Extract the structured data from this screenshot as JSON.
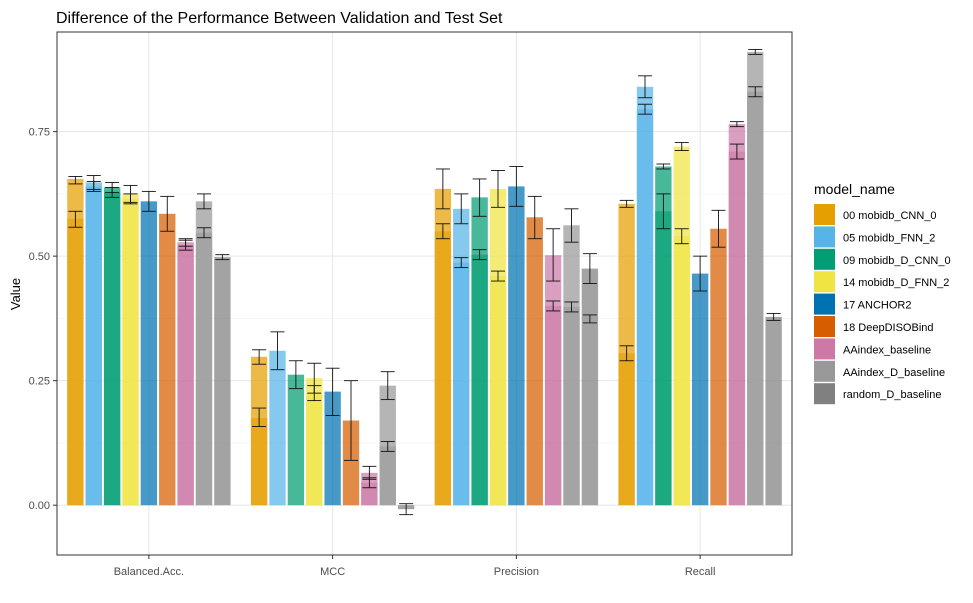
{
  "chart_data": {
    "type": "bar",
    "title": "Difference of the Performance Between Validation and Test Set",
    "xlabel": "",
    "ylabel": "Value",
    "ylim": [
      -0.1,
      0.95
    ],
    "yticks": [
      0.0,
      0.25,
      0.5,
      0.75
    ],
    "ytick_labels": [
      "0.00",
      "0.25",
      "0.50",
      "0.75"
    ],
    "grid": true,
    "legend_title": "model_name",
    "legend_position": "right",
    "categories": [
      "Balanced.Acc.",
      "MCC",
      "Precision",
      "Recall"
    ],
    "series": [
      {
        "name": "00 mobidb_CNN_0",
        "color": "#E69F00",
        "values": [
          0.655,
          0.298,
          0.635,
          0.605
        ],
        "inner": [
          0.575,
          0.175,
          0.55,
          0.305
        ],
        "err_hi": [
          0.66,
          0.312,
          0.675,
          0.612
        ],
        "err_lo": [
          0.645,
          0.283,
          0.595,
          0.598
        ],
        "ierr_hi": [
          0.59,
          0.195,
          0.565,
          0.32
        ],
        "ierr_lo": [
          0.558,
          0.158,
          0.535,
          0.29
        ]
      },
      {
        "name": "05 mobidb_FNN_2",
        "color": "#56B4E9",
        "values": [
          0.648,
          0.31,
          0.595,
          0.84
        ],
        "inner": [
          0.64,
          0.0,
          0.487,
          0.795
        ],
        "err_hi": [
          0.662,
          0.348,
          0.625,
          0.862
        ],
        "err_lo": [
          0.634,
          0.272,
          0.565,
          0.818
        ],
        "ierr_hi": [
          0.65,
          null,
          0.497,
          0.805
        ],
        "ierr_lo": [
          0.63,
          null,
          0.477,
          0.785
        ]
      },
      {
        "name": "09 mobidb_D_CNN_0",
        "color": "#009E73",
        "values": [
          0.638,
          0.262,
          0.618,
          0.68
        ],
        "inner": [
          0.628,
          0.0,
          0.503,
          0.59
        ],
        "err_hi": [
          0.648,
          0.29,
          0.655,
          0.685
        ],
        "err_lo": [
          0.628,
          0.234,
          0.58,
          0.675
        ],
        "ierr_hi": [
          0.638,
          null,
          0.513,
          0.625
        ],
        "ierr_lo": [
          0.618,
          null,
          0.493,
          0.555
        ]
      },
      {
        "name": "14 mobidb_D_FNN_2",
        "color": "#F0E442",
        "values": [
          0.625,
          0.255,
          0.635,
          0.72
        ],
        "inner": [
          0.615,
          0.225,
          0.46,
          0.54
        ],
        "err_hi": [
          0.642,
          0.285,
          0.672,
          0.728
        ],
        "err_lo": [
          0.608,
          0.225,
          0.598,
          0.712
        ],
        "ierr_hi": [
          0.625,
          0.24,
          0.47,
          0.555
        ],
        "ierr_lo": [
          0.605,
          0.21,
          0.45,
          0.525
        ]
      },
      {
        "name": "17 ANCHOR2",
        "color": "#0072B2",
        "values": [
          0.61,
          0.228,
          0.64,
          0.465
        ],
        "inner": [
          0.0,
          0.0,
          0.0,
          0.0
        ],
        "err_hi": [
          0.63,
          0.275,
          0.68,
          0.5
        ],
        "err_lo": [
          0.59,
          0.18,
          0.6,
          0.43
        ],
        "ierr_hi": [
          null,
          null,
          null,
          null
        ],
        "ierr_lo": [
          null,
          null,
          null,
          null
        ]
      },
      {
        "name": "18 DeepDISOBind",
        "color": "#D55E00",
        "values": [
          0.585,
          0.17,
          0.578,
          0.555
        ],
        "inner": [
          0.0,
          0.0,
          0.0,
          0.0
        ],
        "err_hi": [
          0.62,
          0.25,
          0.62,
          0.592
        ],
        "err_lo": [
          0.55,
          0.09,
          0.535,
          0.518
        ],
        "ierr_hi": [
          null,
          null,
          null,
          null
        ],
        "ierr_lo": [
          null,
          null,
          null,
          null
        ]
      },
      {
        "name": "AAindex_baseline",
        "color": "#CC79A7",
        "values": [
          0.528,
          0.065,
          0.502,
          0.765
        ],
        "inner": [
          0.522,
          0.045,
          0.4,
          0.71
        ],
        "err_hi": [
          0.535,
          0.078,
          0.555,
          0.77
        ],
        "err_lo": [
          0.52,
          0.052,
          0.45,
          0.76
        ],
        "ierr_hi": [
          0.532,
          0.055,
          0.41,
          0.725
        ],
        "ierr_lo": [
          0.512,
          0.035,
          0.39,
          0.695
        ]
      },
      {
        "name": "AAindex_D_baseline",
        "color": "#999999",
        "values": [
          0.61,
          0.24,
          0.562,
          0.91
        ],
        "inner": [
          0.547,
          0.118,
          0.398,
          0.83
        ],
        "err_hi": [
          0.625,
          0.268,
          0.595,
          0.915
        ],
        "err_lo": [
          0.595,
          0.212,
          0.528,
          0.905
        ],
        "ierr_hi": [
          0.557,
          0.128,
          0.408,
          0.84
        ],
        "ierr_lo": [
          0.537,
          0.108,
          0.388,
          0.82
        ]
      },
      {
        "name": "random_D_baseline",
        "color": "#808080",
        "values": [
          0.498,
          -0.008,
          0.475,
          0.378
        ],
        "inner": [
          0.0,
          0.0,
          0.0,
          0.0
        ],
        "err_hi": [
          0.503,
          0.003,
          0.505,
          0.385
        ],
        "err_lo": [
          0.493,
          -0.019,
          0.445,
          0.371
        ],
        "ierr_hi": [
          null,
          null,
          0.382,
          null
        ],
        "ierr_lo": [
          null,
          null,
          0.366,
          null
        ]
      }
    ]
  }
}
